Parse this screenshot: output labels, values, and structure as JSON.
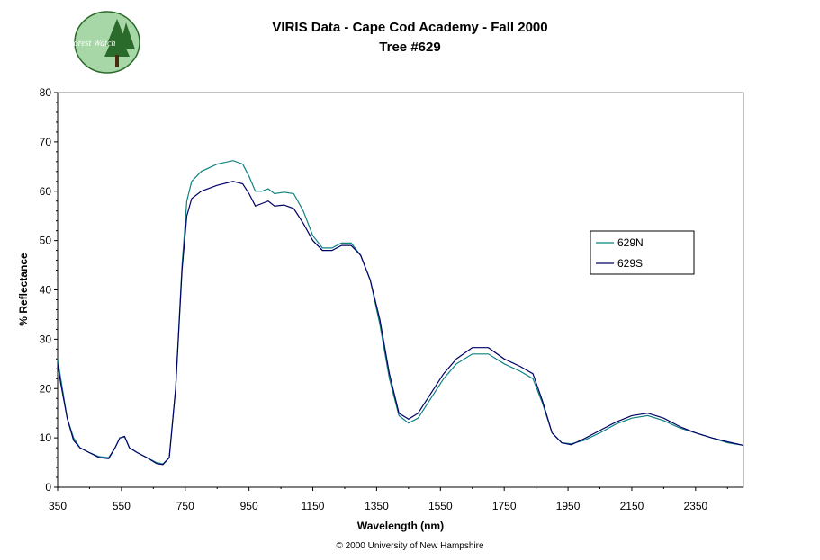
{
  "header": {
    "title_line1": "VIRIS Data - Cape Cod Academy - Fall 2000",
    "title_line2": "Tree #629",
    "logo_text": "Forest Watch"
  },
  "footer": {
    "copyright": "© 2000 University of New Hampshire"
  },
  "colors": {
    "series_629N": "#0f8080",
    "series_629S": "#000066",
    "logo_background": "#a7d6a7",
    "logo_trees": "#2a6a2a"
  },
  "chart_data": {
    "type": "line",
    "title": "VIRIS Data - Cape Cod Academy - Fall 2000",
    "subtitle": "Tree #629",
    "xlabel": "Wavelength (nm)",
    "ylabel": "% Reflectance",
    "xlim": [
      350,
      2500
    ],
    "ylim": [
      0,
      80
    ],
    "x_ticks": [
      350,
      550,
      750,
      950,
      1150,
      1350,
      1550,
      1750,
      1950,
      2150,
      2350
    ],
    "y_ticks": [
      0,
      10,
      20,
      30,
      40,
      50,
      60,
      70,
      80
    ],
    "grid": false,
    "legend_position": "right",
    "series": [
      {
        "name": "629N",
        "color": "#0f8080",
        "points": [
          [
            350,
            26
          ],
          [
            360,
            22
          ],
          [
            380,
            14
          ],
          [
            400,
            10
          ],
          [
            420,
            8
          ],
          [
            450,
            7
          ],
          [
            480,
            6.2
          ],
          [
            510,
            6
          ],
          [
            530,
            8
          ],
          [
            545,
            10
          ],
          [
            560,
            10.2
          ],
          [
            575,
            8
          ],
          [
            600,
            7
          ],
          [
            630,
            6
          ],
          [
            660,
            5
          ],
          [
            680,
            4.7
          ],
          [
            700,
            6
          ],
          [
            720,
            20
          ],
          [
            740,
            45
          ],
          [
            755,
            58
          ],
          [
            770,
            62
          ],
          [
            800,
            64
          ],
          [
            850,
            65.5
          ],
          [
            900,
            66.2
          ],
          [
            930,
            65.5
          ],
          [
            950,
            63
          ],
          [
            970,
            60
          ],
          [
            990,
            60
          ],
          [
            1010,
            60.5
          ],
          [
            1030,
            59.5
          ],
          [
            1060,
            59.8
          ],
          [
            1090,
            59.5
          ],
          [
            1120,
            56
          ],
          [
            1150,
            51
          ],
          [
            1180,
            48.5
          ],
          [
            1210,
            48.5
          ],
          [
            1240,
            49.5
          ],
          [
            1270,
            49.5
          ],
          [
            1300,
            47
          ],
          [
            1330,
            42
          ],
          [
            1360,
            33
          ],
          [
            1390,
            22
          ],
          [
            1420,
            14.5
          ],
          [
            1450,
            13
          ],
          [
            1480,
            14
          ],
          [
            1520,
            18
          ],
          [
            1560,
            22
          ],
          [
            1600,
            25
          ],
          [
            1650,
            27
          ],
          [
            1700,
            27
          ],
          [
            1750,
            25
          ],
          [
            1800,
            23.5
          ],
          [
            1840,
            22
          ],
          [
            1870,
            17
          ],
          [
            1900,
            11
          ],
          [
            1930,
            9
          ],
          [
            1960,
            8.8
          ],
          [
            2000,
            9.5
          ],
          [
            2050,
            11
          ],
          [
            2100,
            12.8
          ],
          [
            2150,
            14
          ],
          [
            2200,
            14.5
          ],
          [
            2250,
            13.5
          ],
          [
            2300,
            12
          ],
          [
            2350,
            11
          ],
          [
            2400,
            10
          ],
          [
            2450,
            9
          ],
          [
            2500,
            8.5
          ]
        ]
      },
      {
        "name": "629S",
        "color": "#000066",
        "points": [
          [
            350,
            25
          ],
          [
            360,
            21
          ],
          [
            380,
            14
          ],
          [
            400,
            9.5
          ],
          [
            420,
            8
          ],
          [
            450,
            7
          ],
          [
            480,
            6
          ],
          [
            510,
            5.8
          ],
          [
            530,
            8
          ],
          [
            545,
            10
          ],
          [
            560,
            10.3
          ],
          [
            575,
            8
          ],
          [
            600,
            7
          ],
          [
            630,
            6
          ],
          [
            660,
            4.8
          ],
          [
            680,
            4.6
          ],
          [
            700,
            6
          ],
          [
            720,
            20
          ],
          [
            740,
            44
          ],
          [
            755,
            55
          ],
          [
            770,
            58.5
          ],
          [
            800,
            60
          ],
          [
            850,
            61.2
          ],
          [
            900,
            62
          ],
          [
            930,
            61.5
          ],
          [
            950,
            59.5
          ],
          [
            970,
            57
          ],
          [
            990,
            57.5
          ],
          [
            1010,
            58
          ],
          [
            1030,
            57
          ],
          [
            1060,
            57.2
          ],
          [
            1090,
            56.5
          ],
          [
            1120,
            53.5
          ],
          [
            1150,
            50
          ],
          [
            1180,
            48
          ],
          [
            1210,
            48
          ],
          [
            1240,
            49
          ],
          [
            1270,
            49
          ],
          [
            1300,
            47
          ],
          [
            1330,
            42
          ],
          [
            1360,
            34
          ],
          [
            1390,
            23
          ],
          [
            1420,
            15
          ],
          [
            1450,
            13.8
          ],
          [
            1480,
            15
          ],
          [
            1520,
            19
          ],
          [
            1560,
            23
          ],
          [
            1600,
            26
          ],
          [
            1650,
            28.3
          ],
          [
            1700,
            28.3
          ],
          [
            1750,
            26
          ],
          [
            1800,
            24.5
          ],
          [
            1840,
            23
          ],
          [
            1870,
            17.5
          ],
          [
            1900,
            11
          ],
          [
            1930,
            9
          ],
          [
            1960,
            8.6
          ],
          [
            2000,
            9.8
          ],
          [
            2050,
            11.5
          ],
          [
            2100,
            13.2
          ],
          [
            2150,
            14.5
          ],
          [
            2200,
            15
          ],
          [
            2250,
            14
          ],
          [
            2300,
            12.3
          ],
          [
            2350,
            11
          ],
          [
            2400,
            10
          ],
          [
            2450,
            9.2
          ],
          [
            2500,
            8.5
          ]
        ]
      }
    ]
  }
}
